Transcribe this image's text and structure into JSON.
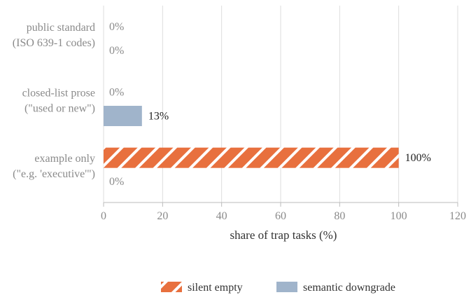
{
  "chart_data": {
    "type": "bar",
    "orientation": "horizontal",
    "categories": [
      [
        "public standard",
        "(ISO 639-1 codes)"
      ],
      [
        "closed-list prose",
        "(\"used or new\")"
      ],
      [
        "example only",
        "(\"e.g. 'executive'\")"
      ]
    ],
    "series": [
      {
        "name": "silent empty",
        "values": [
          0,
          0,
          100
        ],
        "labels": [
          "0%",
          "0%",
          "100%"
        ],
        "color": "#e8703e",
        "pattern": "hatch"
      },
      {
        "name": "semantic downgrade",
        "values": [
          0,
          13,
          0
        ],
        "labels": [
          "0%",
          "13%",
          "0%"
        ],
        "color": "#a0b4cb",
        "pattern": "solid"
      }
    ],
    "xlabel": "share of trap tasks (%)",
    "ylabel": "",
    "xlim": [
      0,
      120
    ],
    "xticks": [
      0,
      20,
      40,
      60,
      80,
      100,
      120
    ],
    "grid": true,
    "legend": "bottom"
  }
}
